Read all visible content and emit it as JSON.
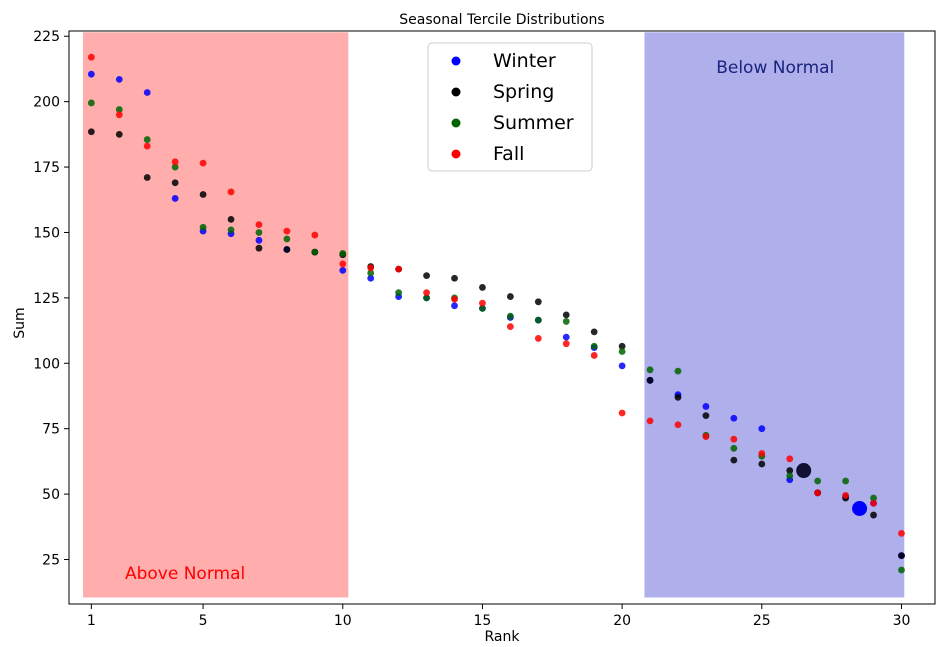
{
  "chart_data": {
    "type": "scatter",
    "title": "Seasonal Tercile Distributions",
    "xlabel": "Rank",
    "ylabel": "Sum",
    "xlim": [
      0.2,
      31.2
    ],
    "ylim": [
      8,
      227
    ],
    "xticks": [
      1,
      5,
      10,
      15,
      20,
      25,
      30
    ],
    "yticks": [
      25,
      50,
      75,
      100,
      125,
      150,
      175,
      200,
      225
    ],
    "grid": false,
    "legend_position": "top-center",
    "regions": [
      {
        "label": "Above Normal",
        "x_range": [
          0.7,
          10.2
        ],
        "fill": "#ff9999",
        "label_color": "#ff0000"
      },
      {
        "label": "Below Normal",
        "x_range": [
          20.8,
          30.1
        ],
        "fill": "#9b9be6",
        "label_color": "#1a237e"
      }
    ],
    "series": [
      {
        "name": "Winter",
        "color": "#0000ff",
        "x": [
          1,
          2,
          3,
          4,
          5,
          6,
          7,
          8,
          9,
          10,
          11,
          12,
          13,
          14,
          15,
          16,
          17,
          18,
          19,
          20,
          21,
          22,
          23,
          24,
          25,
          26,
          27,
          28,
          29,
          30
        ],
        "y": [
          210.5,
          208.5,
          203.5,
          163,
          150.5,
          149.5,
          147,
          143.5,
          142.5,
          135.5,
          132.5,
          125.5,
          125,
          122,
          121,
          117.5,
          116.5,
          110,
          106,
          99,
          93.5,
          88,
          83.5,
          79,
          75,
          55.5,
          50.5,
          49,
          46.5,
          26.5
        ]
      },
      {
        "name": "Spring",
        "color": "#000000",
        "x": [
          1,
          2,
          3,
          4,
          5,
          6,
          7,
          8,
          9,
          10,
          11,
          12,
          13,
          14,
          15,
          16,
          17,
          18,
          19,
          20,
          21,
          22,
          23,
          24,
          25,
          26,
          27,
          28,
          29,
          30
        ],
        "y": [
          188.5,
          187.5,
          171,
          169,
          164.5,
          155,
          144,
          143.5,
          142.5,
          141.5,
          137,
          136,
          133.5,
          132.5,
          129,
          125.5,
          123.5,
          118.5,
          112,
          106.5,
          93.5,
          87,
          80,
          63,
          61.5,
          59,
          50.5,
          48.5,
          42,
          26.5
        ]
      },
      {
        "name": "Summer",
        "color": "#006400",
        "x": [
          1,
          2,
          3,
          4,
          5,
          6,
          7,
          8,
          9,
          10,
          11,
          12,
          13,
          14,
          15,
          16,
          17,
          18,
          19,
          20,
          21,
          22,
          23,
          24,
          25,
          26,
          27,
          28,
          29,
          30
        ],
        "y": [
          199.5,
          197,
          185.5,
          175,
          152,
          151,
          150,
          147.5,
          142.5,
          142,
          134.5,
          127,
          125,
          125,
          121,
          118,
          116.5,
          116,
          106.5,
          104.5,
          97.5,
          97,
          72.5,
          67.5,
          64.5,
          57,
          55,
          55,
          48.5,
          21
        ]
      },
      {
        "name": "Fall",
        "color": "#ff0000",
        "x": [
          1,
          2,
          3,
          4,
          5,
          6,
          7,
          8,
          9,
          10,
          11,
          12,
          13,
          14,
          15,
          16,
          17,
          18,
          19,
          20,
          21,
          22,
          23,
          24,
          25,
          26,
          27,
          28,
          29,
          30
        ],
        "y": [
          217,
          195,
          183,
          177,
          176.5,
          165.5,
          153,
          150.5,
          149,
          138,
          136.5,
          136,
          127,
          124.5,
          123,
          114,
          109.5,
          107.5,
          103,
          81,
          78,
          76.5,
          72,
          71,
          65.5,
          63.5,
          50.5,
          49.5,
          46.5,
          35
        ]
      }
    ],
    "highlighted_points": [
      {
        "series": "Spring",
        "x": 26.5,
        "y": 59
      },
      {
        "series": "Winter",
        "x": 28.5,
        "y": 44.5
      }
    ]
  }
}
